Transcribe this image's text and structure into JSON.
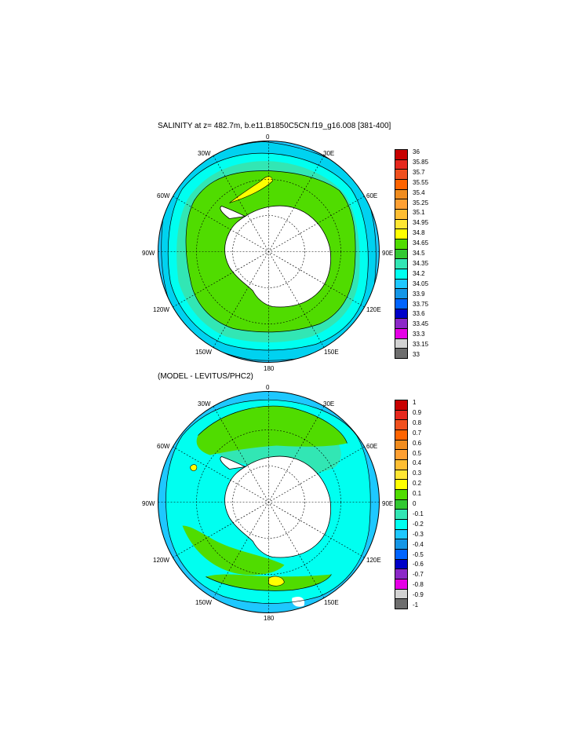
{
  "panel1": {
    "title": "SALINITY at z= 482.7m, b.e11.B1850C5CN.f19_g16.008 [381-400]",
    "lon_labels": {
      "n": "0",
      "ne": "30E",
      "e_hi": "60E",
      "e": "90E",
      "e_lo": "120E",
      "se": "150E",
      "s": "180",
      "sw": "150W",
      "w_lo": "120W",
      "w": "90W",
      "w_hi": "60W",
      "nw": "30W"
    },
    "colorbar": {
      "labels": [
        "36",
        "35.85",
        "35.7",
        "35.55",
        "35.4",
        "35.25",
        "35.1",
        "34.95",
        "34.8",
        "34.65",
        "34.5",
        "34.35",
        "34.2",
        "34.05",
        "33.9",
        "33.75",
        "33.6",
        "33.45",
        "33.3",
        "33.15",
        "33"
      ],
      "colors": [
        "#c80000",
        "#e6281e",
        "#f0501e",
        "#ff6400",
        "#f08c1e",
        "#ffa032",
        "#ffbe32",
        "#ffe632",
        "#ffff00",
        "#50dc00",
        "#32c832",
        "#32e6b4",
        "#00fff0",
        "#1ec8ff",
        "#1496e6",
        "#0064ff",
        "#0000c8",
        "#8c28c8",
        "#e600e6",
        "#d2d2d2",
        "#6e6e6e"
      ]
    }
  },
  "panel2": {
    "title": "(MODEL - LEVITUS/PHC2)",
    "lon_labels": {
      "n": "0",
      "ne": "30E",
      "e_hi": "60E",
      "e": "90E",
      "e_lo": "120E",
      "se": "150E",
      "s": "180",
      "sw": "150W",
      "w_lo": "120W",
      "w": "90W",
      "w_hi": "60W",
      "nw": "30W"
    },
    "colorbar": {
      "labels": [
        "1",
        "0.9",
        "0.8",
        "0.7",
        "0.6",
        "0.5",
        "0.4",
        "0.3",
        "0.2",
        "0.1",
        "0",
        "-0.1",
        "-0.2",
        "-0.3",
        "-0.4",
        "-0.5",
        "-0.6",
        "-0.7",
        "-0.8",
        "-0.9",
        "-1"
      ],
      "colors": [
        "#c80000",
        "#e6281e",
        "#f0501e",
        "#ff6400",
        "#f08c1e",
        "#ffa032",
        "#ffbe32",
        "#ffe632",
        "#ffff00",
        "#50dc00",
        "#32c832",
        "#32e6b4",
        "#00fff0",
        "#1ec8ff",
        "#1496e6",
        "#0064ff",
        "#0000c8",
        "#8c28c8",
        "#e600e6",
        "#d2d2d2",
        "#6e6e6e"
      ]
    }
  }
}
